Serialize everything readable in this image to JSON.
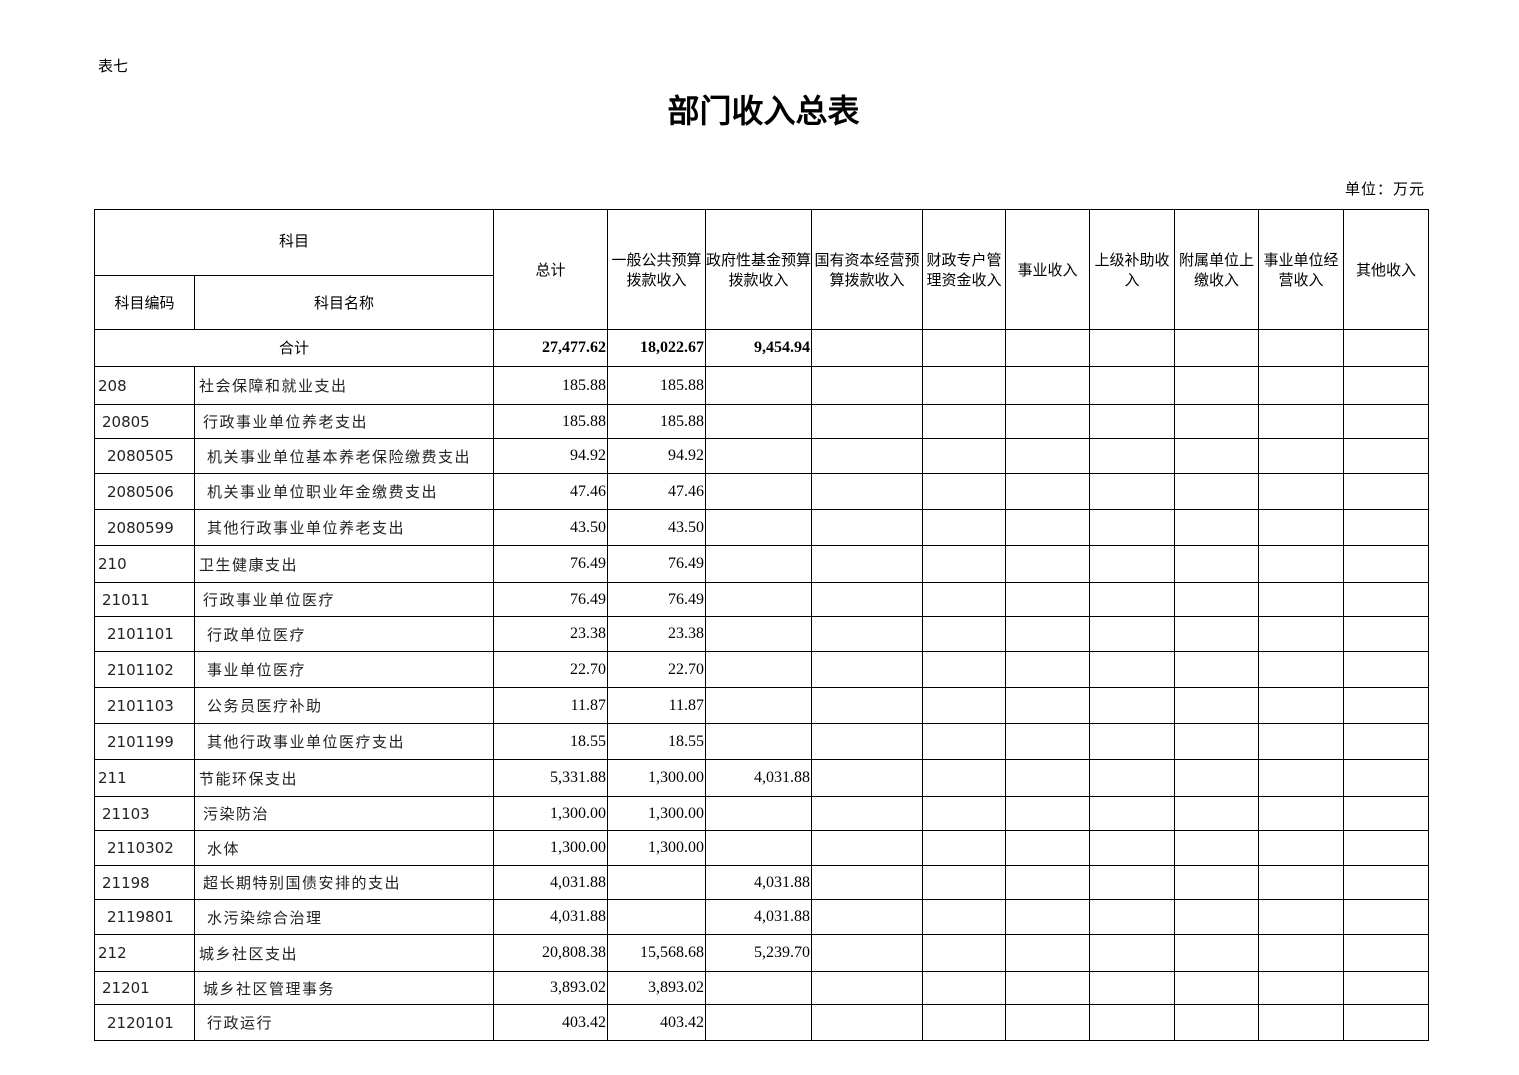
{
  "doc": {
    "tag": "表七",
    "title": "部门收入总表",
    "unit": "单位：万元"
  },
  "header": {
    "subject": "科目",
    "code": "科目编码",
    "name": "科目名称",
    "cols": [
      "总计",
      "一般公共预算拨款收入",
      "政府性基金预算拨款收入",
      "国有资本经营预算拨款收入",
      "财政专户管理资金收入",
      "事业收入",
      "上级补助收入",
      "附属单位上缴收入",
      "事业单位经营收入",
      "其他收入"
    ]
  },
  "total": {
    "label": "合计",
    "values": [
      "27,477.62",
      "18,022.67",
      "9,454.94",
      "",
      "",
      "",
      "",
      "",
      "",
      ""
    ]
  },
  "rows": [
    {
      "level": 1,
      "code": "208",
      "name": "社会保障和就业支出",
      "values": [
        "185.88",
        "185.88",
        "",
        "",
        "",
        "",
        "",
        "",
        "",
        ""
      ]
    },
    {
      "level": 2,
      "code": "20805",
      "name": "行政事业单位养老支出",
      "values": [
        "185.88",
        "185.88",
        "",
        "",
        "",
        "",
        "",
        "",
        "",
        ""
      ]
    },
    {
      "level": 3,
      "code": "2080505",
      "name": "机关事业单位基本养老保险缴费支出",
      "values": [
        "94.92",
        "94.92",
        "",
        "",
        "",
        "",
        "",
        "",
        "",
        ""
      ]
    },
    {
      "level": 3,
      "code": "2080506",
      "name": "机关事业单位职业年金缴费支出",
      "values": [
        "47.46",
        "47.46",
        "",
        "",
        "",
        "",
        "",
        "",
        "",
        ""
      ]
    },
    {
      "level": 3,
      "code": "2080599",
      "name": "其他行政事业单位养老支出",
      "values": [
        "43.50",
        "43.50",
        "",
        "",
        "",
        "",
        "",
        "",
        "",
        ""
      ]
    },
    {
      "level": 1,
      "code": "210",
      "name": "卫生健康支出",
      "values": [
        "76.49",
        "76.49",
        "",
        "",
        "",
        "",
        "",
        "",
        "",
        ""
      ]
    },
    {
      "level": 2,
      "code": "21011",
      "name": "行政事业单位医疗",
      "values": [
        "76.49",
        "76.49",
        "",
        "",
        "",
        "",
        "",
        "",
        "",
        ""
      ]
    },
    {
      "level": 3,
      "code": "2101101",
      "name": "行政单位医疗",
      "values": [
        "23.38",
        "23.38",
        "",
        "",
        "",
        "",
        "",
        "",
        "",
        ""
      ]
    },
    {
      "level": 3,
      "code": "2101102",
      "name": "事业单位医疗",
      "values": [
        "22.70",
        "22.70",
        "",
        "",
        "",
        "",
        "",
        "",
        "",
        ""
      ]
    },
    {
      "level": 3,
      "code": "2101103",
      "name": "公务员医疗补助",
      "values": [
        "11.87",
        "11.87",
        "",
        "",
        "",
        "",
        "",
        "",
        "",
        ""
      ]
    },
    {
      "level": 3,
      "code": "2101199",
      "name": "其他行政事业单位医疗支出",
      "values": [
        "18.55",
        "18.55",
        "",
        "",
        "",
        "",
        "",
        "",
        "",
        ""
      ]
    },
    {
      "level": 1,
      "code": "211",
      "name": "节能环保支出",
      "values": [
        "5,331.88",
        "1,300.00",
        "4,031.88",
        "",
        "",
        "",
        "",
        "",
        "",
        ""
      ]
    },
    {
      "level": 2,
      "code": "21103",
      "name": "污染防治",
      "values": [
        "1,300.00",
        "1,300.00",
        "",
        "",
        "",
        "",
        "",
        "",
        "",
        ""
      ]
    },
    {
      "level": 3,
      "code": "2110302",
      "name": "水体",
      "values": [
        "1,300.00",
        "1,300.00",
        "",
        "",
        "",
        "",
        "",
        "",
        "",
        ""
      ]
    },
    {
      "level": 2,
      "code": "21198",
      "name": "超长期特别国债安排的支出",
      "values": [
        "4,031.88",
        "",
        "4,031.88",
        "",
        "",
        "",
        "",
        "",
        "",
        ""
      ]
    },
    {
      "level": 3,
      "code": "2119801",
      "name": "水污染综合治理",
      "values": [
        "4,031.88",
        "",
        "4,031.88",
        "",
        "",
        "",
        "",
        "",
        "",
        ""
      ]
    },
    {
      "level": 1,
      "code": "212",
      "name": "城乡社区支出",
      "values": [
        "20,808.38",
        "15,568.68",
        "5,239.70",
        "",
        "",
        "",
        "",
        "",
        "",
        ""
      ]
    },
    {
      "level": 2,
      "code": "21201",
      "name": "城乡社区管理事务",
      "values": [
        "3,893.02",
        "3,893.02",
        "",
        "",
        "",
        "",
        "",
        "",
        "",
        ""
      ]
    },
    {
      "level": 3,
      "code": "2120101",
      "name": "行政运行",
      "values": [
        "403.42",
        "403.42",
        "",
        "",
        "",
        "",
        "",
        "",
        "",
        ""
      ]
    }
  ]
}
